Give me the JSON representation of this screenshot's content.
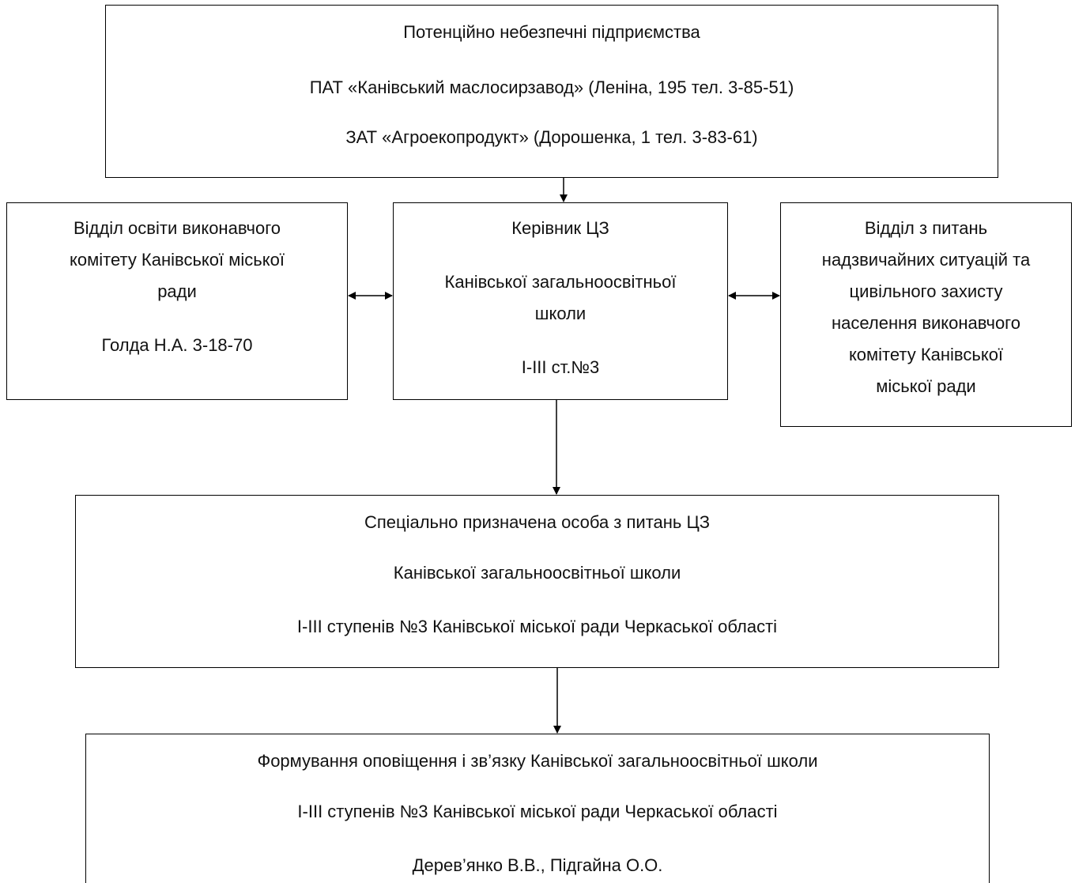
{
  "top_box": {
    "line1": "Потенційно небезпечні підприємства",
    "line2": "ПАТ «Канівський маслосирзавод» (Леніна, 195 тел. 3-85-51)",
    "line3": "ЗАТ «Агроекопродукт» (Дорошенка, 1 тел. 3-83-61)"
  },
  "left_box": {
    "line1": "Відділ освіти виконавчого",
    "line2": "комітету Канівської міської",
    "line3": "ради",
    "line4": "Голда Н.А. 3-18-70"
  },
  "center_box": {
    "line1": "Керівник  ЦЗ",
    "line2": "Канівської загальноосвітньої",
    "line3": "школи",
    "line4": "І-ІІІ ст.№3"
  },
  "right_box": {
    "line1": "Відділ з питань",
    "line2": "надзвичайних ситуацій та",
    "line3": "цивільного захисту",
    "line4": "населення виконавчого",
    "line5": "комітету Канівської",
    "line6": "міської ради"
  },
  "middle_box": {
    "line1": "Спеціально призначена особа з питань  ЦЗ",
    "line2": "Канівської загальноосвітньої школи",
    "line3": "І-ІІІ ступенів №3 Канівської міської ради Черкаської області"
  },
  "bottom_box": {
    "line1": "Формування  оповіщення і зв’язку Канівської загальноосвітньої школи",
    "line2": "І-ІІІ ступенів №3 Канівської міської ради Черкаської області",
    "line3": "Дерев’янко В.В., Підгайна О.О."
  }
}
